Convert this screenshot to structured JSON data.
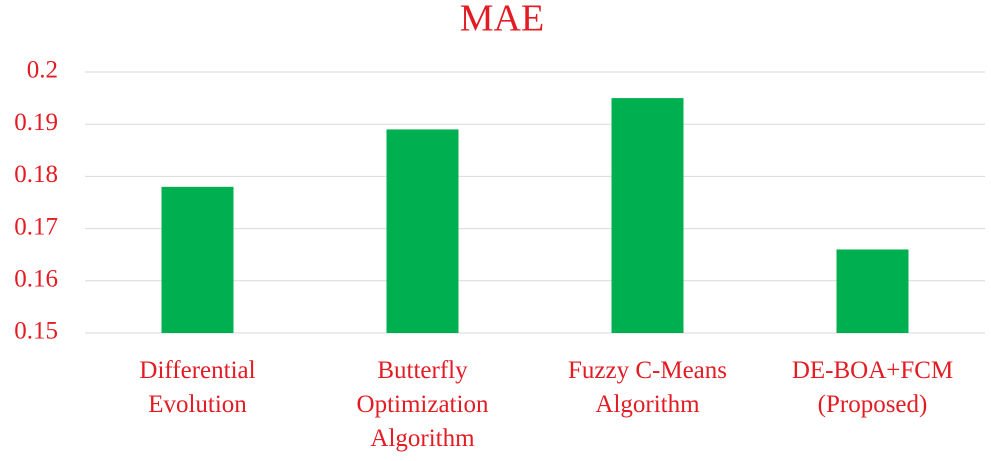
{
  "chart_data": {
    "type": "bar",
    "title": "MAE",
    "categories": [
      "Differential Evolution",
      "Butterfly Optimization Algorithm",
      "Fuzzy C-Means Algorithm",
      "DE-BOA+FCM (Proposed)"
    ],
    "values": [
      0.178,
      0.189,
      0.195,
      0.166
    ],
    "color": "#00b050",
    "ylim": [
      0.15,
      0.2
    ],
    "yticks": [
      0.15,
      0.16,
      0.17,
      0.18,
      0.19,
      0.2
    ],
    "grid": true
  }
}
